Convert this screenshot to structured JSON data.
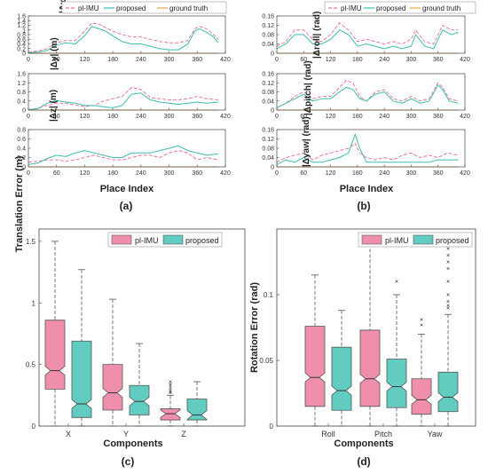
{
  "colors": {
    "pl_imu": "#e8799a",
    "proposed": "#3bbdb0",
    "ground_truth": "#e5a34a",
    "pink_fill": "#ef8fab",
    "teal_fill": "#62ccc0",
    "axis": "#444444"
  },
  "labels": {
    "panel_a": "(a)",
    "panel_b": "(b)",
    "panel_c": "(c)",
    "panel_d": "(d)",
    "legend_pl": "pl-IMU",
    "legend_proposed": "proposed",
    "legend_gt": "ground truth",
    "place_index": "Place Index",
    "components": "Components",
    "translation_error": "Translation Error (m)",
    "rotation_error": "Rotation Error (rad)"
  },
  "chart_data": [
    {
      "type": "line",
      "panel": "a",
      "ylabel": "|Δx| (m)",
      "xlim": [
        0,
        420
      ],
      "ylim": [
        0,
        1.6
      ],
      "xticks": [
        0,
        60,
        120,
        180,
        240,
        300,
        360,
        420
      ],
      "yticks": [
        0,
        0.2,
        0.4,
        0.6,
        0.8,
        1,
        1.2,
        1.4,
        1.6
      ],
      "x": [
        0,
        20,
        40,
        60,
        80,
        100,
        120,
        135,
        150,
        165,
        180,
        200,
        220,
        240,
        260,
        280,
        300,
        320,
        340,
        355,
        365,
        380,
        395,
        405
      ],
      "series": [
        {
          "name": "pl-IMU",
          "values": [
            0.05,
            0.1,
            0.2,
            0.45,
            0.55,
            0.55,
            0.95,
            1.3,
            1.25,
            1.1,
            0.95,
            0.8,
            0.7,
            0.7,
            0.6,
            0.5,
            0.45,
            0.45,
            0.55,
            1.05,
            1.15,
            1.05,
            0.8,
            0.6
          ]
        },
        {
          "name": "proposed",
          "values": [
            0.03,
            0.05,
            0.12,
            0.35,
            0.45,
            0.4,
            0.75,
            1.15,
            1.05,
            0.95,
            0.75,
            0.5,
            0.4,
            0.4,
            0.3,
            0.2,
            0.15,
            0.15,
            0.4,
            0.95,
            1.05,
            0.9,
            0.7,
            0.45
          ]
        },
        {
          "name": "ground truth",
          "values": [
            0.0,
            0.0,
            0.0,
            0.0,
            0.0,
            0.0,
            0.0,
            0.0,
            0.0,
            0.0,
            0.0,
            0.0,
            0.0,
            0.0,
            0.0,
            0.0,
            0.0,
            0.0,
            0.0,
            0.0,
            0.0,
            0.0,
            0.0,
            0.0
          ]
        }
      ]
    },
    {
      "type": "line",
      "panel": "a",
      "ylabel": "|Δy| (m)",
      "xlim": [
        0,
        420
      ],
      "ylim": [
        0,
        1.6
      ],
      "xticks": [
        0,
        60,
        120,
        180,
        240,
        300,
        360,
        420
      ],
      "yticks": [
        0,
        0.4,
        0.8,
        1.2,
        1.6
      ],
      "x": [
        0,
        20,
        40,
        60,
        80,
        100,
        120,
        140,
        160,
        180,
        200,
        220,
        240,
        260,
        280,
        300,
        320,
        340,
        360,
        380,
        405
      ],
      "series": [
        {
          "name": "pl-IMU",
          "values": [
            0.02,
            0.08,
            0.2,
            0.3,
            0.3,
            0.22,
            0.15,
            0.2,
            0.4,
            0.5,
            0.6,
            1.0,
            0.9,
            0.55,
            0.5,
            0.45,
            0.45,
            0.5,
            0.6,
            0.5,
            0.45
          ]
        },
        {
          "name": "proposed",
          "values": [
            0.02,
            0.06,
            0.3,
            0.42,
            0.35,
            0.3,
            0.2,
            0.2,
            0.15,
            0.1,
            0.2,
            0.7,
            0.75,
            0.45,
            0.35,
            0.3,
            0.25,
            0.3,
            0.35,
            0.3,
            0.35
          ]
        },
        {
          "name": "ground truth",
          "values": [
            0.0,
            0.0,
            0.0,
            0.0,
            0.0,
            0.0,
            0.0,
            0.0,
            0.0,
            0.0,
            0.0,
            0.0,
            0.0,
            0.0,
            0.0,
            0.0,
            0.0,
            0.0,
            0.0,
            0.0,
            0.0
          ]
        }
      ]
    },
    {
      "type": "line",
      "panel": "a",
      "ylabel": "|Δz| (m)",
      "xlim": [
        0,
        420
      ],
      "ylim": [
        0,
        0.8
      ],
      "xticks": [
        0,
        60,
        120,
        180,
        240,
        300,
        360,
        420
      ],
      "yticks": [
        0,
        0.2,
        0.4,
        0.6,
        0.8
      ],
      "x": [
        0,
        20,
        40,
        60,
        80,
        100,
        120,
        140,
        160,
        180,
        200,
        220,
        240,
        260,
        280,
        300,
        320,
        340,
        360,
        380,
        405
      ],
      "series": [
        {
          "name": "pl-IMU",
          "values": [
            0.1,
            0.12,
            0.15,
            0.15,
            0.12,
            0.15,
            0.2,
            0.25,
            0.2,
            0.15,
            0.15,
            0.2,
            0.25,
            0.25,
            0.2,
            0.3,
            0.35,
            0.3,
            0.15,
            0.2,
            0.15
          ]
        },
        {
          "name": "proposed",
          "values": [
            0.05,
            0.08,
            0.18,
            0.25,
            0.22,
            0.3,
            0.35,
            0.3,
            0.25,
            0.2,
            0.2,
            0.3,
            0.3,
            0.3,
            0.35,
            0.4,
            0.45,
            0.35,
            0.3,
            0.25,
            0.28
          ]
        },
        {
          "name": "ground truth",
          "values": [
            0.0,
            0.0,
            0.0,
            0.0,
            0.0,
            0.0,
            0.0,
            0.0,
            0.0,
            0.0,
            0.0,
            0.0,
            0.0,
            0.0,
            0.0,
            0.0,
            0.0,
            0.0,
            0.0,
            0.0,
            0.0
          ]
        }
      ]
    },
    {
      "type": "line",
      "panel": "b",
      "ylabel": "|Δroll| (rad)",
      "xlim": [
        0,
        420
      ],
      "ylim": [
        0,
        0.16
      ],
      "xticks": [
        0,
        60,
        120,
        180,
        240,
        300,
        360,
        420
      ],
      "yticks": [
        0,
        0.04,
        0.08,
        0.12,
        0.16
      ],
      "x": [
        0,
        20,
        40,
        60,
        80,
        100,
        120,
        140,
        160,
        180,
        200,
        220,
        240,
        260,
        280,
        300,
        310,
        330,
        350,
        370,
        390,
        405
      ],
      "series": [
        {
          "name": "pl-IMU",
          "values": [
            0.03,
            0.05,
            0.1,
            0.1,
            0.06,
            0.05,
            0.08,
            0.13,
            0.1,
            0.05,
            0.06,
            0.05,
            0.04,
            0.05,
            0.04,
            0.06,
            0.1,
            0.05,
            0.04,
            0.12,
            0.1,
            0.1
          ]
        },
        {
          "name": "proposed",
          "values": [
            0.02,
            0.04,
            0.08,
            0.08,
            0.04,
            0.04,
            0.06,
            0.1,
            0.08,
            0.03,
            0.04,
            0.03,
            0.02,
            0.03,
            0.02,
            0.03,
            0.08,
            0.03,
            0.02,
            0.1,
            0.08,
            0.09
          ]
        },
        {
          "name": "ground truth",
          "values": [
            0.0,
            0.0,
            0.0,
            0.0,
            0.0,
            0.0,
            0.0,
            0.0,
            0.0,
            0.0,
            0.0,
            0.0,
            0.0,
            0.0,
            0.0,
            0.0,
            0.0,
            0.0,
            0.0,
            0.0,
            0.0,
            0.0
          ]
        }
      ]
    },
    {
      "type": "line",
      "panel": "b",
      "ylabel": "|Δpitch| (rad)",
      "xlim": [
        0,
        420
      ],
      "ylim": [
        0,
        0.16
      ],
      "xticks": [
        0,
        60,
        120,
        180,
        240,
        300,
        360,
        420
      ],
      "yticks": [
        0,
        0.04,
        0.08,
        0.12,
        0.16
      ],
      "x": [
        0,
        20,
        40,
        60,
        80,
        100,
        120,
        140,
        155,
        170,
        185,
        200,
        220,
        240,
        260,
        280,
        300,
        320,
        340,
        360,
        370,
        385,
        405
      ],
      "series": [
        {
          "name": "pl-IMU",
          "values": [
            0.01,
            0.03,
            0.06,
            0.08,
            0.05,
            0.06,
            0.06,
            0.1,
            0.13,
            0.12,
            0.06,
            0.04,
            0.08,
            0.09,
            0.05,
            0.04,
            0.06,
            0.04,
            0.05,
            0.12,
            0.1,
            0.05,
            0.04
          ]
        },
        {
          "name": "proposed",
          "values": [
            0.01,
            0.03,
            0.05,
            0.07,
            0.04,
            0.05,
            0.05,
            0.08,
            0.1,
            0.09,
            0.05,
            0.04,
            0.07,
            0.08,
            0.04,
            0.03,
            0.05,
            0.03,
            0.04,
            0.11,
            0.09,
            0.04,
            0.03
          ]
        },
        {
          "name": "ground truth",
          "values": [
            0.0,
            0.0,
            0.0,
            0.0,
            0.0,
            0.0,
            0.0,
            0.0,
            0.0,
            0.0,
            0.0,
            0.0,
            0.0,
            0.0,
            0.0,
            0.0,
            0.0,
            0.0,
            0.0,
            0.0,
            0.0,
            0.0,
            0.0
          ]
        }
      ]
    },
    {
      "type": "line",
      "panel": "b",
      "ylabel": "|Δyaw| (rad)",
      "xlim": [
        0,
        420
      ],
      "ylim": [
        0,
        0.16
      ],
      "xticks": [
        0,
        60,
        120,
        180,
        240,
        300,
        360,
        420
      ],
      "yticks": [
        0,
        0.04,
        0.08,
        0.12,
        0.16
      ],
      "x": [
        0,
        20,
        40,
        60,
        80,
        100,
        120,
        140,
        160,
        175,
        185,
        200,
        220,
        240,
        260,
        280,
        300,
        320,
        340,
        360,
        380,
        405
      ],
      "series": [
        {
          "name": "pl-IMU",
          "values": [
            0.02,
            0.04,
            0.05,
            0.06,
            0.03,
            0.05,
            0.06,
            0.07,
            0.08,
            0.1,
            0.06,
            0.04,
            0.03,
            0.04,
            0.03,
            0.05,
            0.06,
            0.04,
            0.05,
            0.04,
            0.06,
            0.05
          ]
        },
        {
          "name": "proposed",
          "values": [
            0.01,
            0.03,
            0.02,
            0.04,
            0.02,
            0.02,
            0.03,
            0.04,
            0.06,
            0.14,
            0.08,
            0.02,
            0.02,
            0.02,
            0.02,
            0.02,
            0.02,
            0.02,
            0.02,
            0.03,
            0.03,
            0.03
          ]
        },
        {
          "name": "ground truth",
          "values": [
            0.0,
            0.0,
            0.0,
            0.0,
            0.0,
            0.0,
            0.0,
            0.0,
            0.0,
            0.0,
            0.0,
            0.0,
            0.0,
            0.0,
            0.0,
            0.0,
            0.0,
            0.0,
            0.0,
            0.0,
            0.0,
            0.0
          ]
        }
      ]
    },
    {
      "type": "box",
      "panel": "c",
      "ylabel": "Translation Error (m)",
      "xlabel": "Components",
      "categories": [
        "X",
        "Y",
        "Z"
      ],
      "ylim": [
        0,
        1.6
      ],
      "yticks": [
        0,
        0.5,
        1,
        1.5
      ],
      "series": [
        {
          "name": "pl-IMU",
          "boxes": [
            {
              "min": 0.0,
              "q1": 0.3,
              "median": 0.45,
              "q3": 0.86,
              "max": 1.5,
              "outliers": []
            },
            {
              "min": 0.0,
              "q1": 0.13,
              "median": 0.27,
              "q3": 0.5,
              "max": 1.03,
              "outliers": []
            },
            {
              "min": 0.0,
              "q1": 0.05,
              "median": 0.1,
              "q3": 0.14,
              "max": 0.25,
              "outliers": [
                0.27,
                0.28,
                0.3,
                0.32,
                0.34,
                0.36
              ]
            }
          ]
        },
        {
          "name": "proposed",
          "boxes": [
            {
              "min": 0.0,
              "q1": 0.07,
              "median": 0.18,
              "q3": 0.69,
              "max": 1.27,
              "outliers": []
            },
            {
              "min": 0.0,
              "q1": 0.09,
              "median": 0.2,
              "q3": 0.33,
              "max": 0.67,
              "outliers": []
            },
            {
              "min": 0.0,
              "q1": 0.05,
              "median": 0.09,
              "q3": 0.22,
              "max": 0.36,
              "outliers": []
            }
          ]
        }
      ]
    },
    {
      "type": "box",
      "panel": "d",
      "ylabel": "Rotation Error (rad)",
      "xlabel": "Components",
      "categories": [
        "Roll",
        "Pitch",
        "Yaw"
      ],
      "ylim": [
        0,
        0.15
      ],
      "yticks": [
        0,
        0.05,
        0.1
      ],
      "series": [
        {
          "name": "pl-IMU",
          "boxes": [
            {
              "min": 0.0,
              "q1": 0.015,
              "median": 0.037,
              "q3": 0.076,
              "max": 0.115,
              "outliers": []
            },
            {
              "min": 0.0,
              "q1": 0.015,
              "median": 0.036,
              "q3": 0.073,
              "max": 0.143,
              "outliers": []
            },
            {
              "min": 0.0,
              "q1": 0.009,
              "median": 0.02,
              "q3": 0.036,
              "max": 0.07,
              "outliers": [
                0.077,
                0.081
              ]
            }
          ]
        },
        {
          "name": "proposed",
          "boxes": [
            {
              "min": 0.0,
              "q1": 0.012,
              "median": 0.027,
              "q3": 0.06,
              "max": 0.088,
              "outliers": []
            },
            {
              "min": 0.0,
              "q1": 0.014,
              "median": 0.03,
              "q3": 0.051,
              "max": 0.1,
              "outliers": [
                0.11
              ]
            },
            {
              "min": 0.0,
              "q1": 0.011,
              "median": 0.022,
              "q3": 0.041,
              "max": 0.085,
              "outliers": [
                0.09,
                0.092,
                0.095,
                0.1,
                0.11,
                0.12,
                0.125,
                0.13,
                0.135,
                0.14
              ]
            }
          ]
        }
      ]
    }
  ]
}
